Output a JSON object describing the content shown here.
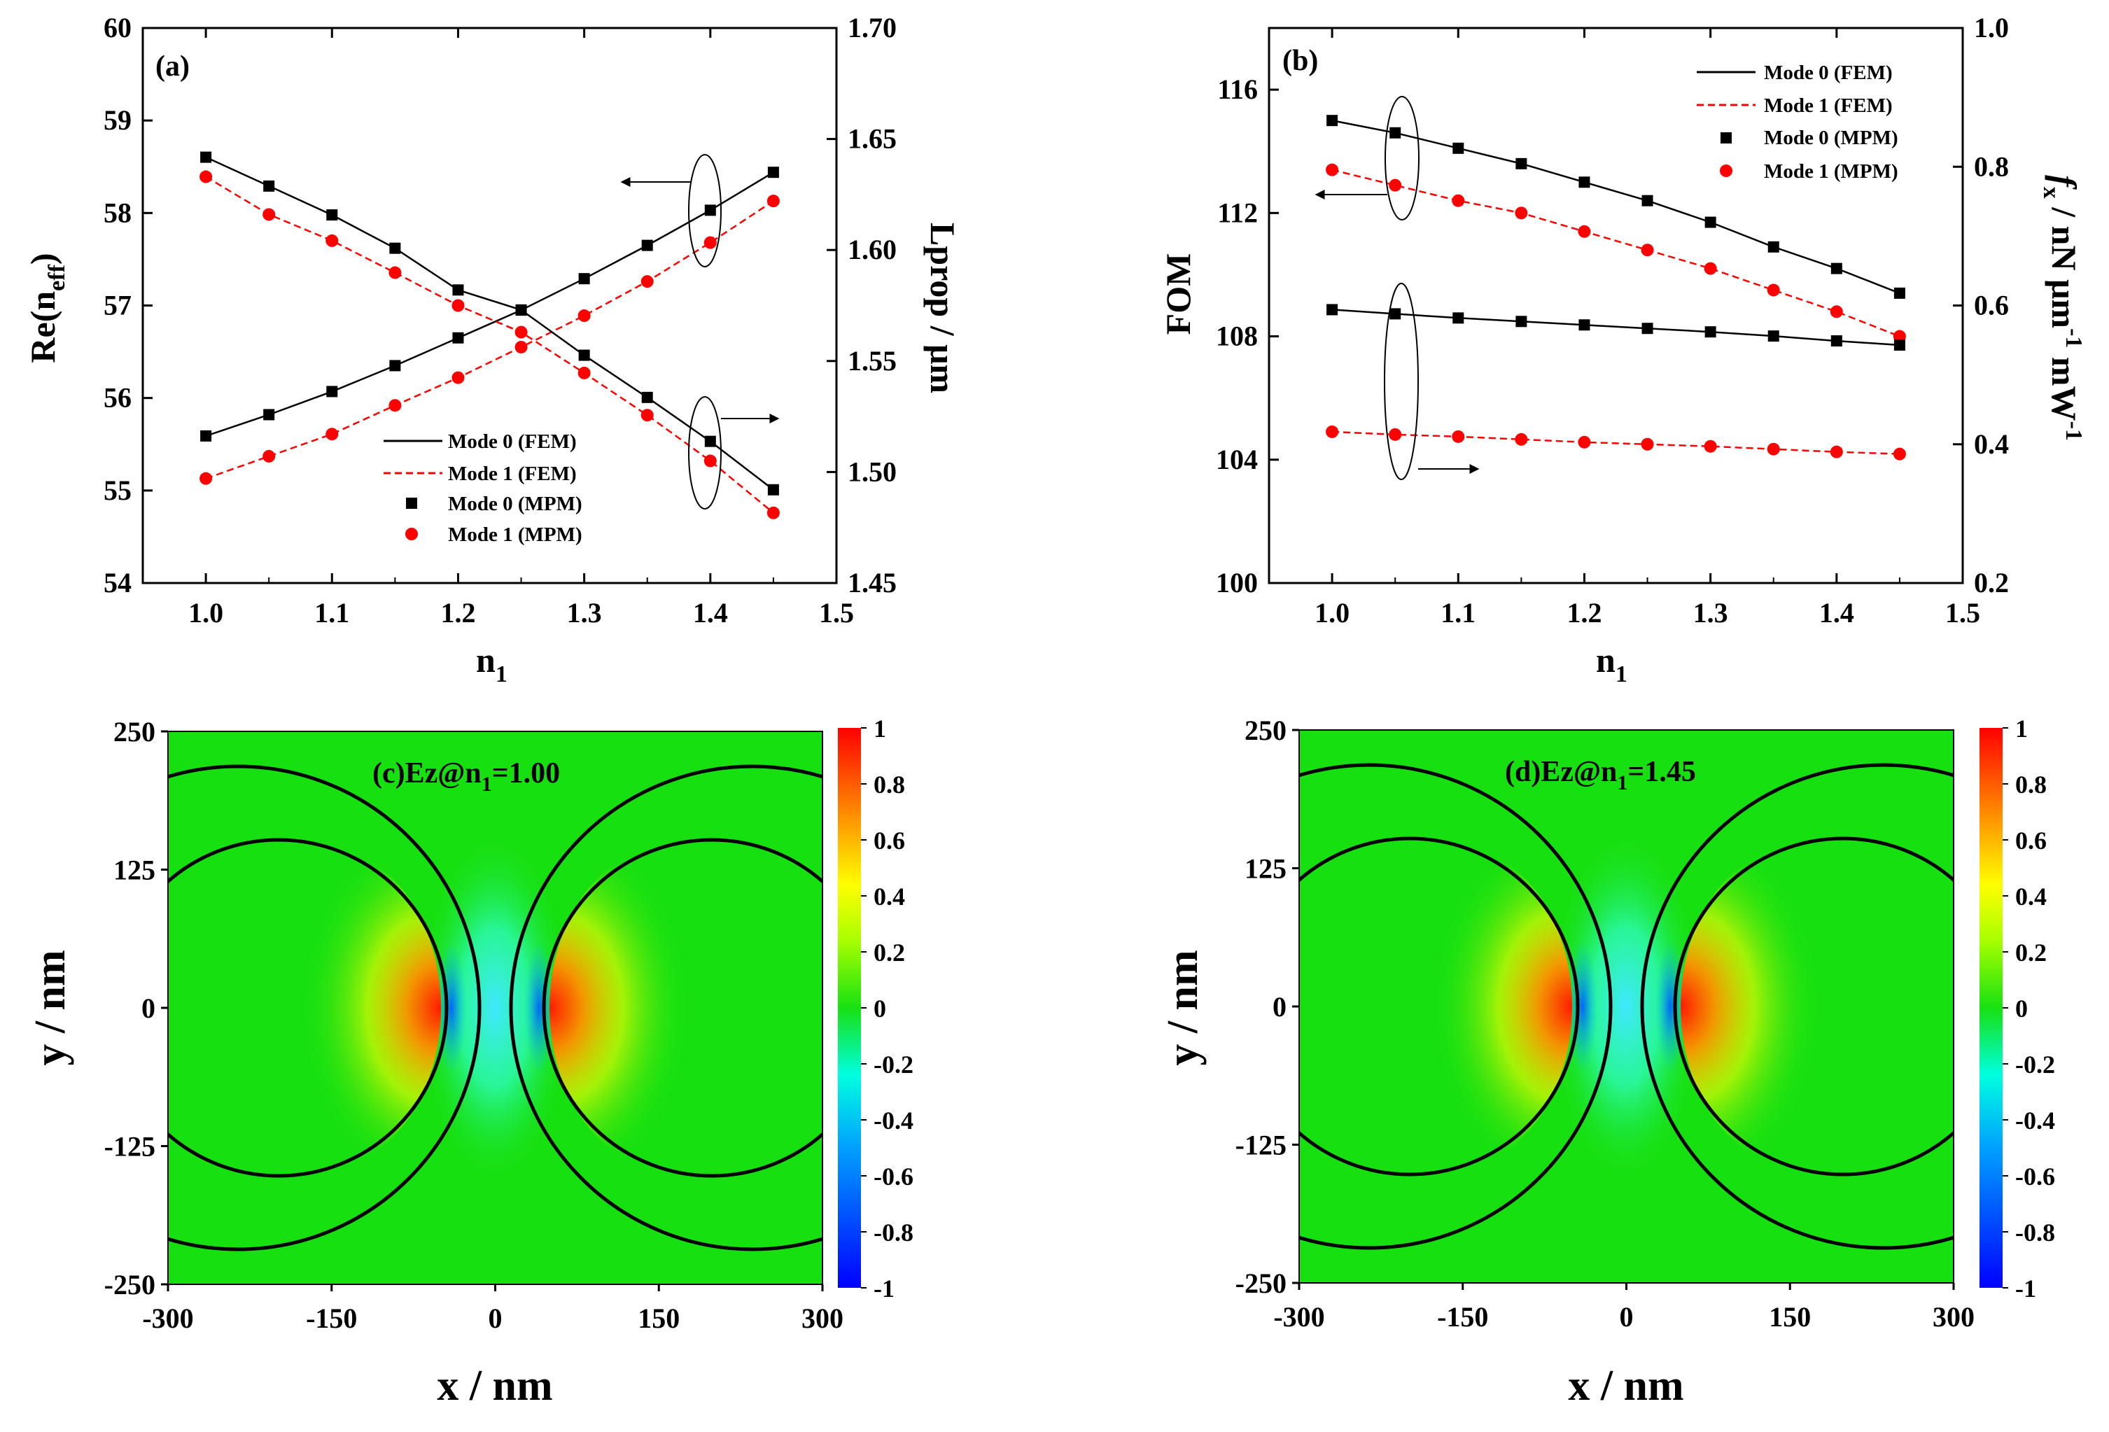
{
  "chart_data": [
    {
      "id": "a",
      "type": "line",
      "panel_label": "(a)",
      "xlabel": "n",
      "xlabel_sub": "1",
      "ylabel_left_main": "Re(n",
      "ylabel_left_sub": "eff",
      "ylabel_left_close": ")",
      "ylabel_right": "Lprop / μm",
      "xlim": [
        0.95,
        1.5
      ],
      "ylim_left": [
        54,
        60
      ],
      "ylim_right": [
        1.45,
        1.7
      ],
      "xticks": [
        "1.0",
        "1.1",
        "1.2",
        "1.3",
        "1.4",
        "1.5"
      ],
      "yticks_left": [
        "54",
        "55",
        "56",
        "57",
        "58",
        "59",
        "60"
      ],
      "yticks_right": [
        "1.45",
        "1.50",
        "1.55",
        "1.60",
        "1.65",
        "1.70"
      ],
      "legend_title": "",
      "legend": [
        "Mode 0 (FEM)",
        "Mode 1 (FEM)",
        "Mode 0 (MPM)",
        "Mode 1 (MPM)"
      ],
      "x": [
        1.0,
        1.05,
        1.1,
        1.15,
        1.2,
        1.25,
        1.3,
        1.35,
        1.4,
        1.45
      ],
      "series": [
        {
          "name": "Mode 0 Re(neff)",
          "axis": "left",
          "values": [
            55.59,
            55.82,
            56.07,
            56.35,
            56.65,
            56.95,
            57.29,
            57.65,
            58.03,
            58.44
          ]
        },
        {
          "name": "Mode 1 Re(neff)",
          "axis": "left",
          "values": [
            55.13,
            55.37,
            55.61,
            55.92,
            56.22,
            56.55,
            56.89,
            57.26,
            57.68,
            58.13
          ]
        },
        {
          "name": "Mode 0 Lprop",
          "axis": "right",
          "values": [
            1.6418,
            1.6288,
            1.6158,
            1.6008,
            1.582,
            1.573,
            1.5526,
            1.5336,
            1.5138,
            1.492
          ]
        },
        {
          "name": "Mode 1 Lprop",
          "axis": "right",
          "values": [
            1.633,
            1.616,
            1.6042,
            1.5898,
            1.575,
            1.563,
            1.5446,
            1.5256,
            1.505,
            1.4816
          ]
        }
      ]
    },
    {
      "id": "b",
      "type": "line",
      "panel_label": "(b)",
      "xlabel": "n",
      "xlabel_sub": "1",
      "ylabel_left": "FOM",
      "ylabel_right_prefix": "f",
      "ylabel_right_sub": "x",
      "ylabel_right_rest": " / nN μm",
      "ylabel_right_sup1": "-1",
      "ylabel_right_mw": " mW",
      "ylabel_right_sup2": "-1",
      "xlim": [
        0.95,
        1.5
      ],
      "ylim_left": [
        100,
        118
      ],
      "ylim_right": [
        0.2,
        1.0
      ],
      "xticks": [
        "1.0",
        "1.1",
        "1.2",
        "1.3",
        "1.4",
        "1.5"
      ],
      "yticks_left": [
        "100",
        "104",
        "108",
        "112",
        "116"
      ],
      "yticks_right": [
        "0.2",
        "0.4",
        "0.6",
        "0.8",
        "1.0"
      ],
      "legend": [
        "Mode 0 (FEM)",
        "Mode 1 (FEM)",
        "Mode 0 (MPM)",
        "Mode 1 (MPM)"
      ],
      "x": [
        1.0,
        1.05,
        1.1,
        1.15,
        1.2,
        1.25,
        1.3,
        1.35,
        1.4,
        1.45
      ],
      "series": [
        {
          "name": "Mode 0 FOM",
          "axis": "left",
          "values": [
            115.0,
            114.6,
            114.1,
            113.6,
            113.0,
            112.4,
            111.7,
            110.9,
            110.2,
            109.4
          ]
        },
        {
          "name": "Mode 1 FOM",
          "axis": "left",
          "values": [
            113.4,
            112.9,
            112.4,
            112.0,
            111.4,
            110.8,
            110.2,
            109.5,
            108.8,
            108.0
          ]
        },
        {
          "name": "Mode 0 fx",
          "axis": "right",
          "values": [
            0.594,
            0.588,
            0.582,
            0.577,
            0.572,
            0.567,
            0.562,
            0.556,
            0.549,
            0.543
          ]
        },
        {
          "name": "Mode 1 fx",
          "axis": "right",
          "values": [
            0.418,
            0.414,
            0.411,
            0.407,
            0.403,
            0.4,
            0.397,
            0.393,
            0.389,
            0.386
          ]
        }
      ]
    },
    {
      "id": "c",
      "type": "heatmap",
      "title": "(c)Ez@n",
      "title_sub": "1",
      "title_rest": "=1.00",
      "xlabel": "x / nm",
      "ylabel": "y / nm",
      "xlim": [
        -300,
        300
      ],
      "ylim": [
        -250,
        250
      ],
      "xticks": [
        "-300",
        "-150",
        "0",
        "150",
        "300"
      ],
      "yticks": [
        "-250",
        "-125",
        "0",
        "125",
        "250"
      ],
      "colorbar_ticks": [
        "-1",
        "-0.8",
        "-0.6",
        "-0.4",
        "-0.2",
        "0",
        "0.2",
        "0.4",
        "0.6",
        "0.8",
        "1"
      ],
      "colorbar_range": [
        -1,
        1
      ]
    },
    {
      "id": "d",
      "type": "heatmap",
      "title": "(d)Ez@n",
      "title_sub": "1",
      "title_rest": "=1.45",
      "xlabel": "x / nm",
      "ylabel": "y / nm",
      "xlim": [
        -300,
        300
      ],
      "ylim": [
        -250,
        250
      ],
      "xticks": [
        "-300",
        "-150",
        "0",
        "150",
        "300"
      ],
      "yticks": [
        "-250",
        "-125",
        "0",
        "125",
        "250"
      ],
      "colorbar_ticks": [
        "-1",
        "-0.8",
        "-0.6",
        "-0.4",
        "-0.2",
        "0",
        "0.2",
        "0.4",
        "0.6",
        "0.8",
        "1"
      ],
      "colorbar_range": [
        -1,
        1
      ]
    }
  ],
  "colors": {
    "mode0": "#000000",
    "mode1": "#ff0000",
    "field_bg": "#17e011"
  }
}
